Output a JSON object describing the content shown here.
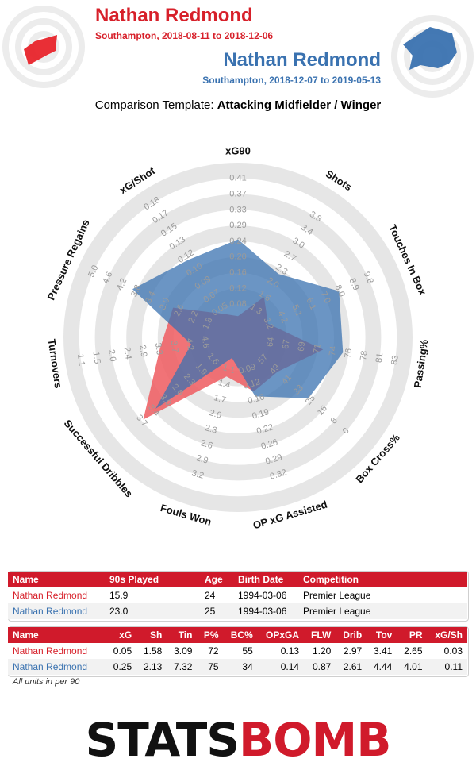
{
  "player1": {
    "name": "Nathan Redmond",
    "subtitle": "Southampton, 2018-08-11 to 2018-12-06",
    "color": "#d7202a"
  },
  "player2": {
    "name": "Nathan Redmond",
    "subtitle": "Southampton, 2018-12-07 to 2019-05-13",
    "color": "#3a72b0"
  },
  "template": {
    "prefix": "Comparison Template: ",
    "name": "Attacking Midfielder / Winger"
  },
  "chart_data": {
    "type": "radar",
    "axes": [
      {
        "label": "xG90",
        "ticks": [
          "0.08",
          "0.12",
          "0.16",
          "0.20",
          "0.24",
          "0.29",
          "0.33",
          "0.37",
          "0.41"
        ],
        "min": 0.04,
        "max": 0.45,
        "reverse": false
      },
      {
        "label": "Shots",
        "ticks": [
          "1.3",
          "1.6",
          "2.0",
          "2.3",
          "2.7",
          "3.0",
          "3.4",
          "3.8"
        ],
        "min": 0.96,
        "max": 4.14,
        "reverse": false
      },
      {
        "label": "Touches In Box",
        "ticks": [
          "3.2",
          "4.2",
          "5.1",
          "6.1",
          "7.0",
          "8.0",
          "8.9",
          "9.8"
        ],
        "min": 2.25,
        "max": 10.75,
        "reverse": false
      },
      {
        "label": "Passing%",
        "ticks": [
          "64",
          "67",
          "69",
          "71",
          "74",
          "76",
          "78",
          "81",
          "83"
        ],
        "min": 61.75,
        "max": 85.25,
        "reverse": false
      },
      {
        "label": "Box Cross%",
        "ticks": [
          "57",
          "49",
          "41",
          "33",
          "25",
          "16",
          "8",
          "0"
        ],
        "min": 73,
        "max": -8,
        "reverse": true
      },
      {
        "label": "OP xG Assisted",
        "ticks": [
          "0.09",
          "0.12",
          "0.16",
          "0.19",
          "0.22",
          "0.26",
          "0.29",
          "0.32"
        ],
        "min": 0.057,
        "max": 0.353,
        "reverse": false
      },
      {
        "label": "Fouls Won",
        "ticks": [
          "1.1",
          "1.4",
          "1.7",
          "2.0",
          "2.3",
          "2.6",
          "2.9",
          "3.2"
        ],
        "min": 0.8,
        "max": 3.5,
        "reverse": false
      },
      {
        "label": "Successful Dribbles",
        "ticks": [
          "1.6",
          "1.9",
          "2.3",
          "2.6",
          "3.0",
          "3.4",
          "3.7"
        ],
        "min": 0.6,
        "max": 4.05,
        "reverse": false
      },
      {
        "label": "Turnovers",
        "ticks": [
          "4.6",
          "4.2",
          "3.7",
          "3.3",
          "2.9",
          "2.4",
          "2.0",
          "1.5",
          "1.1"
        ],
        "min": 5.42,
        "max": 0.28,
        "reverse": true
      },
      {
        "label": "Pressure Regains",
        "ticks": [
          "1.8",
          "2.2",
          "2.6",
          "3.0",
          "3.4",
          "3.8",
          "4.2",
          "4.6",
          "5.0"
        ],
        "min": 1.0,
        "max": 5.8,
        "reverse": false
      },
      {
        "label": "xG/Shot",
        "ticks": [
          "0.05",
          "0.07",
          "0.09",
          "0.10",
          "0.12",
          "0.13",
          "0.15",
          "0.17",
          "0.18"
        ],
        "min": 0.0167,
        "max": 0.2133,
        "reverse": false
      }
    ],
    "series": [
      {
        "name": "Nathan Redmond",
        "color": "#ee5a5f",
        "values": [
          0.05,
          1.58,
          3.09,
          72,
          55,
          0.13,
          1.2,
          2.97,
          3.41,
          2.65,
          0.03
        ]
      },
      {
        "name": "Nathan Redmond",
        "color": "#3a72b0",
        "values": [
          0.25,
          2.13,
          7.32,
          75,
          34,
          0.14,
          0.87,
          2.61,
          4.44,
          4.01,
          0.11
        ]
      }
    ]
  },
  "info_table": {
    "headers": [
      "Name",
      "90s Played",
      "Age",
      "Birth Date",
      "Competition"
    ],
    "rows": [
      [
        "Nathan Redmond",
        "15.9",
        "24",
        "1994-03-06",
        "Premier League"
      ],
      [
        "Nathan Redmond",
        "23.0",
        "25",
        "1994-03-06",
        "Premier League"
      ]
    ]
  },
  "stats_table": {
    "headers": [
      "Name",
      "xG",
      "Sh",
      "Tin",
      "P%",
      "BC%",
      "OPxGA",
      "FLW",
      "Drib",
      "Tov",
      "PR",
      "xG/Sh"
    ],
    "rows": [
      [
        "Nathan Redmond",
        "0.05",
        "1.58",
        "3.09",
        "72",
        "55",
        "0.13",
        "1.20",
        "2.97",
        "3.41",
        "2.65",
        "0.03"
      ],
      [
        "Nathan Redmond",
        "0.25",
        "2.13",
        "7.32",
        "75",
        "34",
        "0.14",
        "0.87",
        "2.61",
        "4.44",
        "4.01",
        "0.11"
      ]
    ]
  },
  "note": "All units in per 90",
  "logo": {
    "part1": "STATS",
    "part2": "BOMB"
  }
}
